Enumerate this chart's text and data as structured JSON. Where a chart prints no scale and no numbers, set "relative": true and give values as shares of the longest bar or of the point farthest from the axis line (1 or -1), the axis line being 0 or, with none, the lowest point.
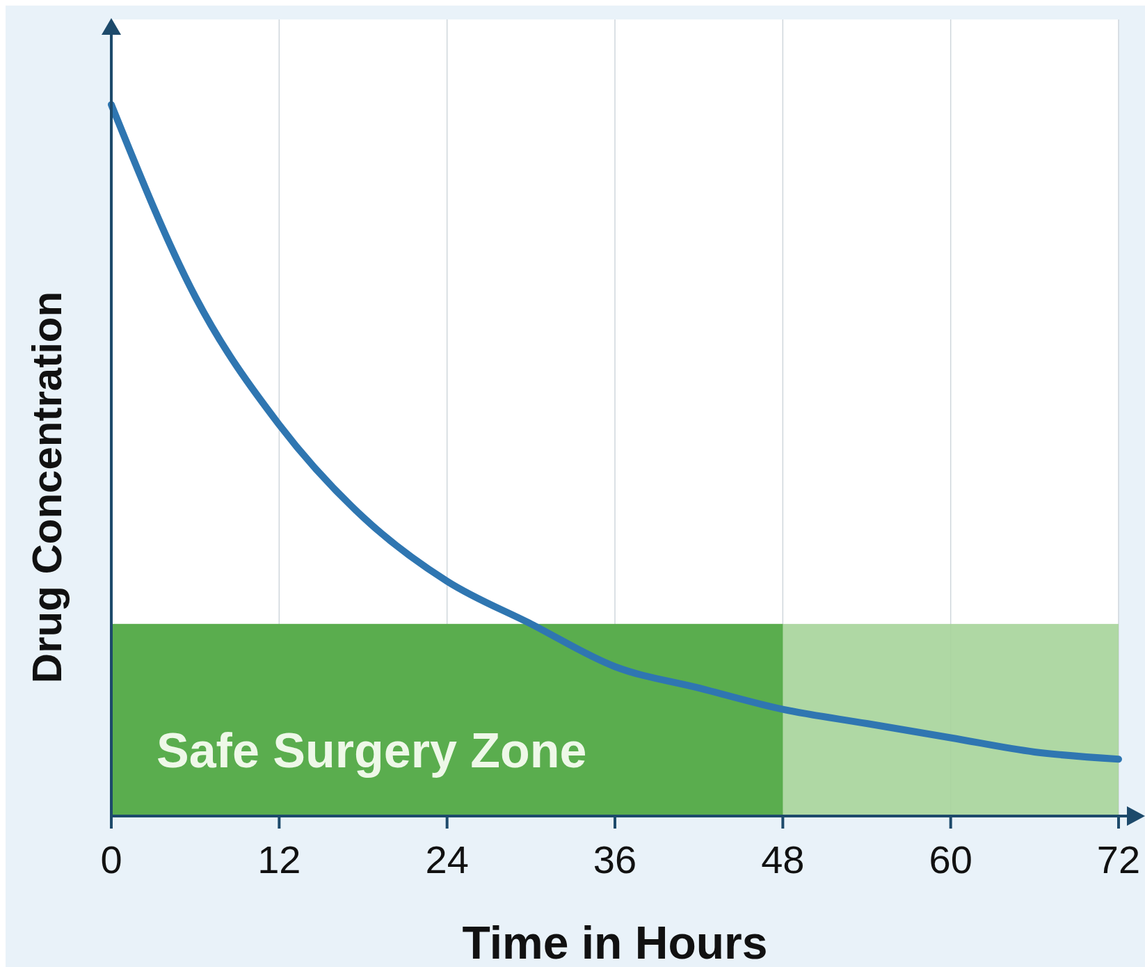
{
  "chart_data": {
    "type": "line",
    "relative": true,
    "xlabel": "Time in Hours",
    "ylabel": "Drug Concentration",
    "x": [
      0,
      6,
      12,
      18,
      24,
      30,
      36,
      42,
      48,
      54,
      60,
      66,
      72
    ],
    "xlim": [
      0,
      72
    ],
    "xticks": [
      0,
      12,
      24,
      36,
      48,
      60,
      72
    ],
    "grid": "x",
    "series": [
      {
        "color": "#2f76b1",
        "values": [
          1.0,
          0.73,
          0.55,
          0.42,
          0.33,
          0.27,
          0.21,
          0.18,
          0.15,
          0.13,
          0.11,
          0.09,
          0.08
        ]
      }
    ],
    "bands": [
      {
        "axis": "y",
        "from": 0,
        "to": 0.27,
        "color": "#a6d49a"
      },
      {
        "axis": "x",
        "from": 0,
        "to": 48,
        "label": "Safe Surgery Zone",
        "color": "#5aad4e"
      }
    ]
  }
}
